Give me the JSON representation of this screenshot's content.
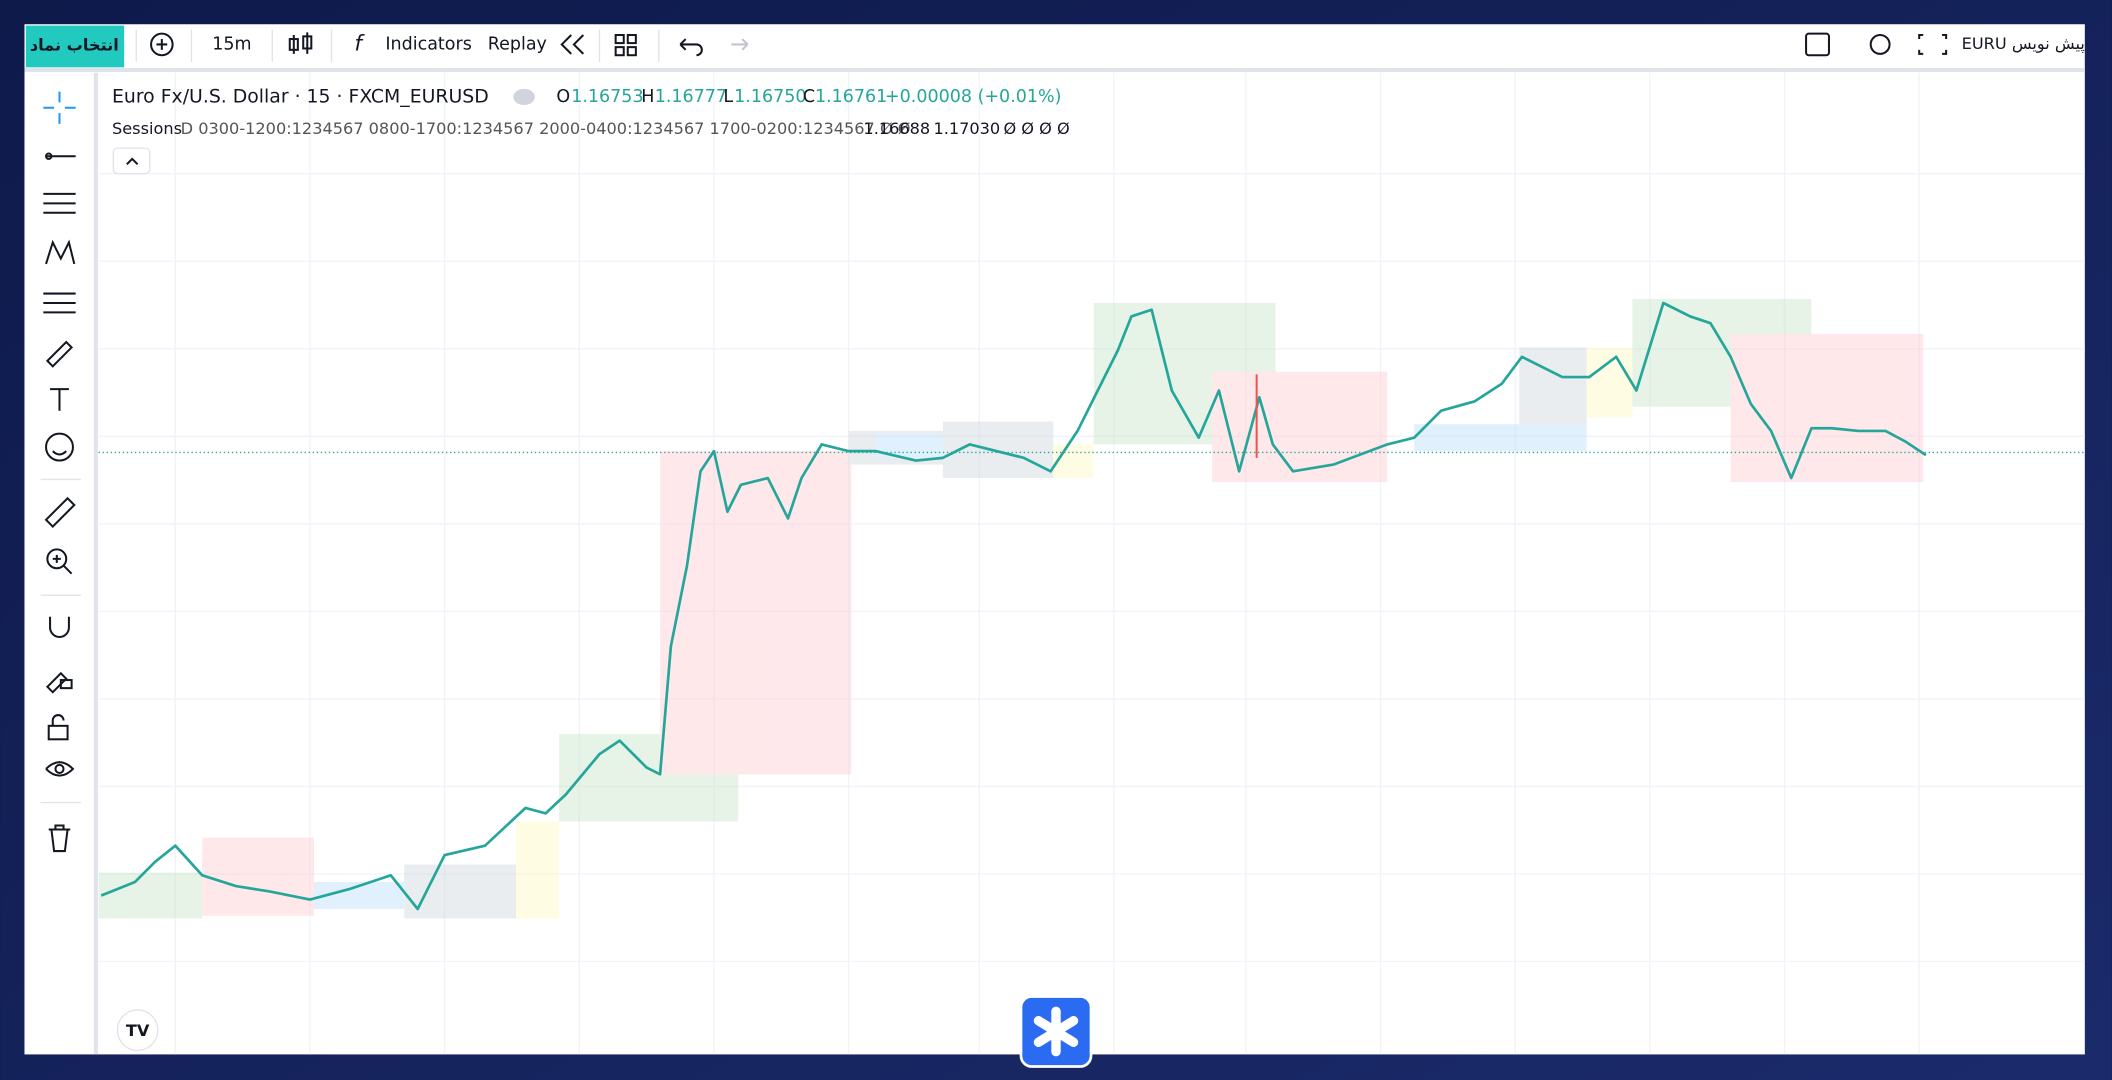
{
  "toolbar": {
    "symbol_button": "انتخاب نماد",
    "interval": "15m",
    "indicators": "Indicators",
    "replay": "Replay",
    "draft": "EURU پیش نویس"
  },
  "legend": {
    "title": "Euro Fx/U.S. Dollar · 15 · FXCM_EURUSD",
    "open_label": "O",
    "open": "1.16753",
    "high_label": "H",
    "high": "1.16777",
    "low_label": "L",
    "low": "1.16750",
    "close_label": "C",
    "close": "1.16761",
    "change": "+0.00008 (+0.01%)"
  },
  "indicator": {
    "name": "Sessions",
    "params": "D 0300-1200:1234567 0800-1700:1234567 2000-0400:1234567 1700-0200:1234567 Ø Ø",
    "value_1": "1.16688",
    "value_2": "1.17030",
    "trailing": "Ø Ø Ø Ø"
  }
}
